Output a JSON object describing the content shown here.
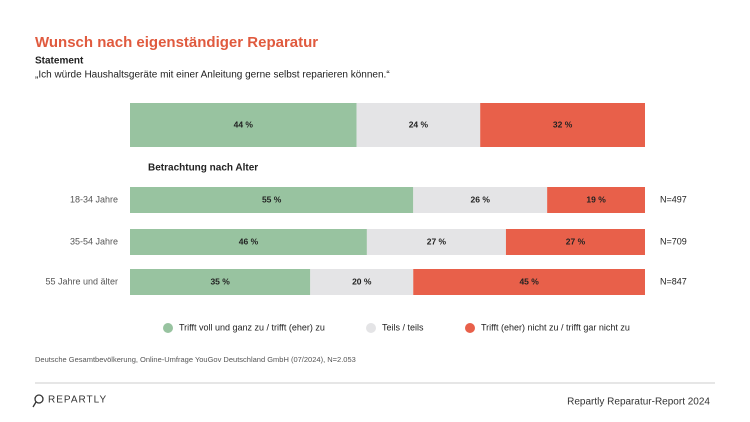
{
  "chart_data": {
    "type": "stacked-bar-horizontal",
    "title": "Wunsch nach eigenständiger Reparatur",
    "subtitle": "Statement",
    "statement": "„Ich würde Haushaltsgeräte mit einer Anleitung gerne selbst reparieren können.“",
    "section_label": "Betrachtung nach Alter",
    "categories": [
      null,
      "18-34 Jahre",
      "35-54 Jahre",
      "55 Jahre und älter"
    ],
    "sample_labels": [
      null,
      "N=497",
      "N=709",
      "N=847"
    ],
    "series": [
      {
        "name": "Trifft voll und ganz zu / trifft (eher) zu",
        "color": "#98c3a0",
        "values": [
          44,
          55,
          46,
          35
        ],
        "value_labels": [
          "44 %",
          "55 %",
          "46 %",
          "35 %"
        ]
      },
      {
        "name": "Teils / teils",
        "color": "#e4e4e6",
        "values": [
          24,
          26,
          27,
          20
        ],
        "value_labels": [
          "24 %",
          "26 %",
          "27 %",
          "20 %"
        ]
      },
      {
        "name": "Trifft (eher) nicht zu / trifft gar nicht zu",
        "color": "#e8604a",
        "values": [
          32,
          19,
          27,
          45
        ],
        "value_labels": [
          "32 %",
          "19 %",
          "27 %",
          "45 %"
        ]
      }
    ],
    "xlim": [
      0,
      100
    ],
    "source": "Deutsche Gesamtbevölkerung, Online-Umfrage YouGov Deutschland GmbH (07/2024), N=2.053",
    "brand": "REPARTLY",
    "footer": "Repartly Reparatur-Report 2024"
  }
}
